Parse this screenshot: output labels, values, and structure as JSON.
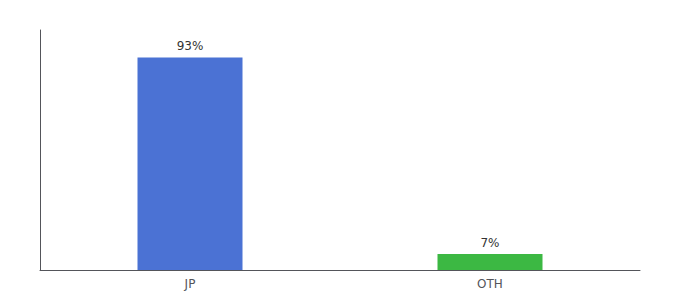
{
  "chart_data": {
    "type": "bar",
    "categories": [
      "JP",
      "OTH"
    ],
    "values": [
      93,
      7
    ],
    "colors": [
      "#4b72d4",
      "#3cb843"
    ],
    "ylim": [
      0,
      105
    ],
    "data_labels": true,
    "value_labels": [
      "93%",
      "7%"
    ],
    "tick_labels": "x",
    "grid": false
  }
}
